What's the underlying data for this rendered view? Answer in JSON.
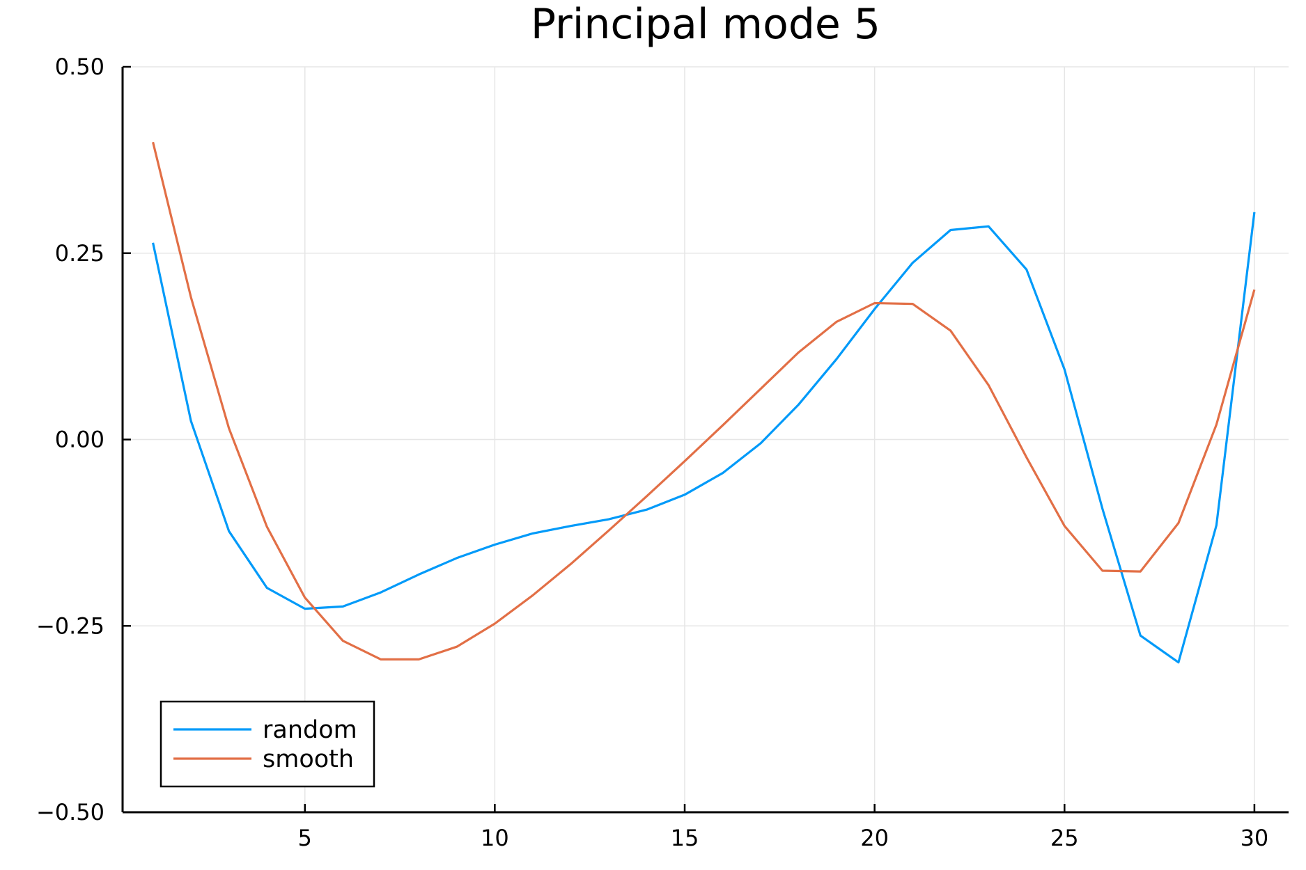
{
  "chart_data": {
    "type": "line",
    "title": "Principal mode 5",
    "xlabel": "",
    "ylabel": "",
    "xlim": [
      0.2,
      30.9
    ],
    "ylim": [
      -0.5,
      0.5
    ],
    "xticks": [
      5,
      10,
      15,
      20,
      25,
      30
    ],
    "xtick_labels": [
      "5",
      "10",
      "15",
      "20",
      "25",
      "30"
    ],
    "yticks": [
      -0.5,
      -0.25,
      0,
      0.25,
      0.5
    ],
    "ytick_labels": [
      "−0.50",
      "−0.25",
      "0.00",
      "0.25",
      "0.50"
    ],
    "grid": true,
    "legend_position": "bottom-left",
    "x": [
      1,
      2,
      3,
      4,
      5,
      6,
      7,
      8,
      9,
      10,
      11,
      12,
      13,
      14,
      15,
      16,
      17,
      18,
      19,
      20,
      21,
      22,
      23,
      24,
      25,
      26,
      27,
      28,
      29,
      30
    ],
    "series": [
      {
        "name": "random",
        "color": "#009af9",
        "values": [
          0.264,
          0.025,
          -0.123,
          -0.199,
          -0.227,
          -0.224,
          -0.205,
          -0.181,
          -0.159,
          -0.141,
          -0.126,
          -0.116,
          -0.107,
          -0.094,
          -0.074,
          -0.045,
          -0.005,
          0.047,
          0.108,
          0.175,
          0.237,
          0.281,
          0.286,
          0.228,
          0.094,
          -0.093,
          -0.263,
          -0.299,
          -0.115,
          0.305
        ]
      },
      {
        "name": "smooth",
        "color": "#e26f46",
        "values": [
          0.399,
          0.191,
          0.015,
          -0.117,
          -0.212,
          -0.27,
          -0.295,
          -0.295,
          -0.278,
          -0.247,
          -0.209,
          -0.167,
          -0.122,
          -0.076,
          -0.029,
          0.019,
          0.068,
          0.117,
          0.158,
          0.183,
          0.182,
          0.146,
          0.073,
          -0.024,
          -0.116,
          -0.176,
          -0.177,
          -0.112,
          0.02,
          0.201
        ]
      }
    ]
  }
}
